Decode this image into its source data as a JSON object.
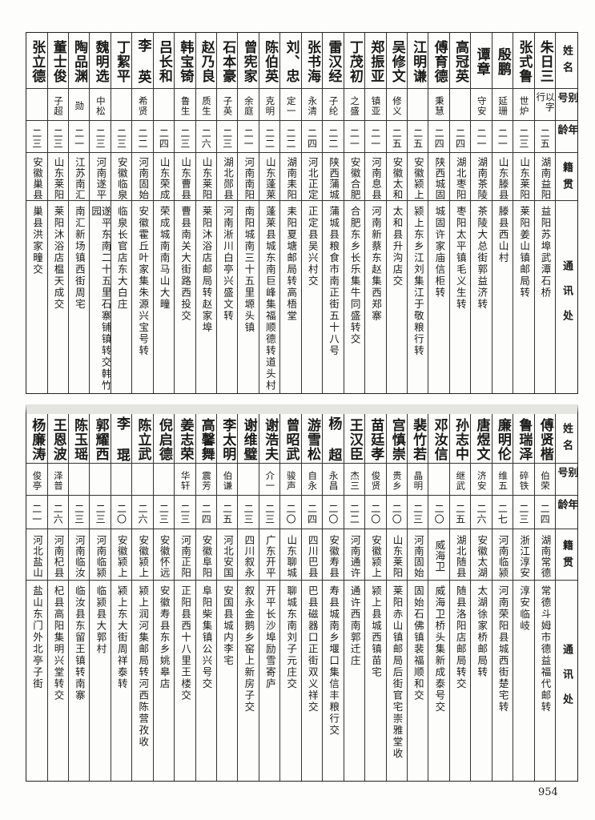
{
  "headers": {
    "name": "姓名",
    "alias": "别号",
    "age": "年龄",
    "native": "籍贯",
    "address": "通讯处"
  },
  "top_table": [
    {
      "name": "朱日三",
      "alias": "以字行",
      "age": "二五",
      "native": "湖南益阳",
      "address": "益阳苏埠武潭石桥"
    },
    {
      "name": "张式鲁",
      "alias": "世炉",
      "age": "二三",
      "native": "山东莱阳",
      "address": "莱阳姜山镇邮局转"
    },
    {
      "name": "殷鹏",
      "alias": "延珊",
      "age": "二一",
      "native": "山东滕县",
      "address": "滕县西山村"
    },
    {
      "name": "谭章",
      "alias": "守安",
      "age": "二一",
      "native": "湖南茶陵",
      "address": "茶陵大总街郭益济转"
    },
    {
      "name": "高冠英",
      "alias": "",
      "age": "二四",
      "native": "湖北枣阳",
      "address": "枣阳太平镇毛义生转"
    },
    {
      "name": "傅育德",
      "alias": "秉慧",
      "age": "二四",
      "native": "陕西城固",
      "address": "城固许家庙信柜转"
    },
    {
      "name": "江明谦",
      "alias": "",
      "age": "二五",
      "native": "安徽颍上",
      "address": "颍上东乡江刘集江于敬粮行转"
    },
    {
      "name": "吴修文",
      "alias": "修义",
      "age": "二五",
      "native": "安徽太和",
      "address": "太和县升沟店交"
    },
    {
      "name": "郑振亚",
      "alias": "镇亚",
      "age": "二一",
      "native": "河南息县",
      "address": "河南新蔡东赵集西郑寨"
    },
    {
      "name": "丁茂初",
      "alias": "之盛",
      "age": "二一",
      "native": "安徽合肥",
      "address": "合肥东乡长乐集牛同盛转交"
    },
    {
      "name": "雷汉经",
      "alias": "子纶",
      "age": "二二",
      "native": "陕西蒲城",
      "address": "蒲城县粮食市南正街五十八号"
    },
    {
      "name": "张书海",
      "alias": "永清",
      "age": "二四",
      "native": "河北正定",
      "address": "正定县吴兴村交"
    },
    {
      "name": "刘、忠",
      "alias": "定一",
      "age": "二二",
      "native": "湖南耒阳",
      "address": "耒阳夏塘邮局转高梧堂"
    },
    {
      "name": "陈伯英",
      "alias": "克明",
      "age": "二二",
      "native": "山东蓬莱",
      "address": "蓬莱县城东南巨峰集福顺德转道头村"
    },
    {
      "name": "曾宪家",
      "alias": "余庭",
      "age": "二一",
      "native": "河南南阳",
      "address": "南阳城南三十五里塬头镇"
    },
    {
      "name": "石本豪",
      "alias": "子英",
      "age": "二三",
      "native": "湖北郧县",
      "address": "河南淅川白亭兴盛文转"
    },
    {
      "name": "赵乃良",
      "alias": "质生",
      "age": "二六",
      "native": "山东莱阳",
      "address": "莱阳沐浴店邮局转赵家埠"
    },
    {
      "name": "韩宝锜",
      "alias": "鲁生",
      "age": "二三",
      "native": "山东曹县",
      "address": "曹县南关大街路西投交"
    },
    {
      "name": "吕长和",
      "alias": "",
      "age": "二四",
      "native": "山东荣成",
      "address": "荣成城南南马山大疃"
    },
    {
      "name": "李 英",
      "alias": "希贤",
      "age": "二二",
      "native": "河南固始",
      "address": "安徽霍丘叶家集朱源兴宝号转"
    },
    {
      "name": "丁絜平",
      "alias": "",
      "age": "二三",
      "native": "安徽临泉",
      "address": "临泉长官店东大白庄"
    },
    {
      "name": "魏明选",
      "alias": "中松",
      "age": "二三",
      "native": "河南遂平",
      "address": "遂平东南二十五里石寨铺镇转交韩竹园"
    },
    {
      "name": "陶品渊",
      "alias": "勋",
      "age": "二一",
      "native": "江苏南汇",
      "address": "南汇新场镇西街周宅"
    },
    {
      "name": "董士俊",
      "alias": "子超",
      "age": "二三",
      "native": "山东莱阳",
      "address": "莱阳沐浴店榅天成交"
    },
    {
      "name": "张立德",
      "alias": "",
      "age": "二三",
      "native": "安徽巢县",
      "address": "巢县洪家疃交"
    }
  ],
  "bottom_table": [
    {
      "name": "傅贤楷",
      "alias": "伯荣",
      "age": "二四",
      "native": "湖南常德",
      "address": "常德斗姆市德益福代邮转"
    },
    {
      "name": "鲁瑞泽",
      "alias": "碎铁",
      "age": "二三",
      "native": "浙江淳安",
      "address": "淳安临岐"
    },
    {
      "name": "廉明伦",
      "alias": "维五",
      "age": "二七",
      "native": "河南临颍",
      "address": "河南荣阳县城西街楚宅转"
    },
    {
      "name": "唐煜文",
      "alias": "济安",
      "age": "二六",
      "native": "安徽太湖",
      "address": "太湖徐家桥邮局转"
    },
    {
      "name": "孙志中",
      "alias": "继武",
      "age": "二五",
      "native": "湖北随县",
      "address": "随县洛阳店邮局转交"
    },
    {
      "name": "邓汝信",
      "alias": "",
      "age": "二〇",
      "native": "威海卫",
      "address": "威海卫桥头集新成泰号交"
    },
    {
      "name": "裴竹若",
      "alias": "晶明",
      "age": "二三",
      "native": "河南固始",
      "address": "固始石佛镇裴福顺和交"
    },
    {
      "name": "宫慎崇",
      "alias": "贵乡",
      "age": "二〇",
      "native": "山东莱阳",
      "address": "莱阳赤山镇邮局后街官宅崇雅堂收"
    },
    {
      "name": "苗廷孝",
      "alias": "俊贤",
      "age": "二〇",
      "native": "安徽颍上",
      "address": "颍上县城西镇苗宅"
    },
    {
      "name": "王汉臣",
      "alias": "杰三",
      "age": "二二",
      "native": "河南通许",
      "address": "通许西南郭迁庄"
    },
    {
      "name": "杨 超",
      "alias": "永昌",
      "age": "二〇",
      "native": "安徽寿县",
      "address": "寿县城南乡堰口集信丰粮行交"
    },
    {
      "name": "游雪松",
      "alias": "自永",
      "age": "二四",
      "native": "四川巴县",
      "address": "巴县磁器口正街双义祥交"
    },
    {
      "name": "曾昭武",
      "alias": "骏声",
      "age": "二〇",
      "native": "山东聊城",
      "address": "聊城东南刘子元庄交"
    },
    {
      "name": "谢浩夫",
      "alias": "介一",
      "age": "二三",
      "native": "广东开平",
      "address": "开平长沙埠励雪寄庐"
    },
    {
      "name": "谢维璧",
      "alias": "",
      "age": "二三",
      "native": "四川叙永",
      "address": "叙永金鹅乡窑上新房子交"
    },
    {
      "name": "李太明",
      "alias": "伯谦",
      "age": "二五",
      "native": "河北安国",
      "address": "安国县城内李宅"
    },
    {
      "name": "高馨舞",
      "alias": "震芳",
      "age": "二四",
      "native": "安徽阜阳",
      "address": "阜阳柴集镇公兴号交"
    },
    {
      "name": "姜志荣",
      "alias": "华轩",
      "age": "二三",
      "native": "河南正阳",
      "address": "正阳县西十八里王楼交"
    },
    {
      "name": "倪启德",
      "alias": "",
      "age": "二三",
      "native": "安徽怀远",
      "address": "安徽寿县东乡姚皋店"
    },
    {
      "name": "陈立武",
      "alias": "",
      "age": "二六",
      "native": "安徽颍上",
      "address": "颍上润河集邮局转河西陈营孜收"
    },
    {
      "name": "李 琨",
      "alias": "",
      "age": "二〇",
      "native": "安徽颍上",
      "address": "颍上东大街周祥泰转"
    },
    {
      "name": "郭耀西",
      "alias": "",
      "age": "二三",
      "native": "河南临颍",
      "address": "临颍县大郭村"
    },
    {
      "name": "陈玉瑶",
      "alias": "",
      "age": "二三",
      "native": "河南临汝",
      "address": "临汝县东留王镇转南寨"
    },
    {
      "name": "王恩波",
      "alias": "泽普",
      "age": "二六",
      "native": "河南杞县",
      "address": "杞县高阳集明兴堂转交"
    },
    {
      "name": "杨廉涛",
      "alias": "俊亭",
      "age": "二一",
      "native": "河北盐山",
      "address": "盐山东门外北亭子街"
    }
  ],
  "page_number": "954"
}
